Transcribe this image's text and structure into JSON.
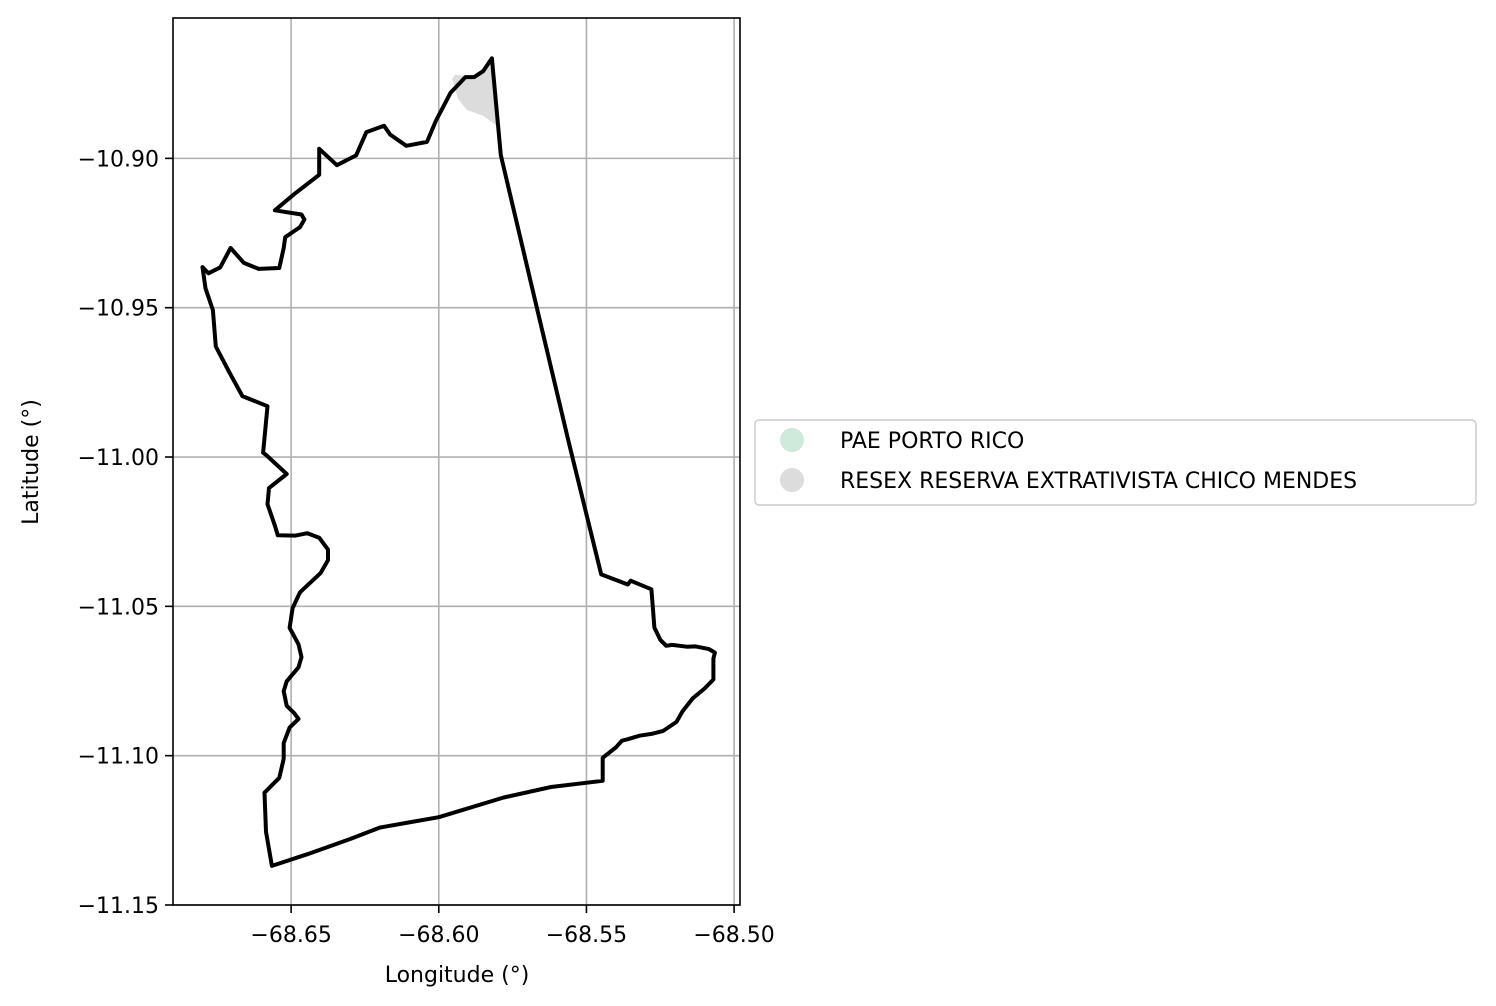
{
  "chart_data": {
    "type": "map",
    "xlabel": "Longitude (°)",
    "ylabel": "Latitude (°)",
    "xlim": [
      -68.69,
      -68.498
    ],
    "ylim": [
      -11.15,
      -10.853
    ],
    "grid": true,
    "x_ticks": [
      {
        "value": -68.65,
        "label": "−68.65"
      },
      {
        "value": -68.6,
        "label": "−68.60"
      },
      {
        "value": -68.55,
        "label": "−68.55"
      },
      {
        "value": -68.5,
        "label": "−68.50"
      }
    ],
    "y_ticks": [
      {
        "value": -10.9,
        "label": "−10.90"
      },
      {
        "value": -10.95,
        "label": "−10.95"
      },
      {
        "value": -11.0,
        "label": "−11.00"
      },
      {
        "value": -11.05,
        "label": "−11.05"
      },
      {
        "value": -11.1,
        "label": "−11.10"
      },
      {
        "value": -11.15,
        "label": "−11.15"
      }
    ],
    "legend": {
      "placement": "center-right-outside",
      "entries": [
        {
          "label": "PAE PORTO RICO",
          "color": "#cfeadb"
        },
        {
          "label": "RESEX RESERVA EXTRATIVISTA CHICO MENDES",
          "color": "#dcdcdc"
        }
      ]
    },
    "boundary_color": "#000000",
    "boundary_polygon": [
      [
        -68.582,
        -10.8665
      ],
      [
        -68.579,
        -10.8989
      ],
      [
        -68.568,
        -10.945
      ],
      [
        -68.556,
        -10.995
      ],
      [
        -68.545,
        -11.0393
      ],
      [
        -68.536,
        -11.0427
      ],
      [
        -68.535,
        -11.0414
      ],
      [
        -68.528,
        -11.0443
      ],
      [
        -68.527,
        -11.0571
      ],
      [
        -68.525,
        -11.0612
      ],
      [
        -68.523,
        -11.0632
      ],
      [
        -68.521,
        -11.0629
      ],
      [
        -68.516,
        -11.0635
      ],
      [
        -68.513,
        -11.0634
      ],
      [
        -68.5085,
        -11.0643
      ],
      [
        -68.5065,
        -11.0655
      ],
      [
        -68.507,
        -11.0675
      ],
      [
        -68.507,
        -11.0745
      ],
      [
        -68.51,
        -11.0775
      ],
      [
        -68.514,
        -11.0808
      ],
      [
        -68.5175,
        -11.0852
      ],
      [
        -68.5195,
        -11.0887
      ],
      [
        -68.524,
        -11.0917
      ],
      [
        -68.528,
        -11.0927
      ],
      [
        -68.532,
        -11.0933
      ],
      [
        -68.536,
        -11.0945
      ],
      [
        -68.538,
        -11.095
      ],
      [
        -68.54,
        -11.0972
      ],
      [
        -68.5445,
        -11.1007
      ],
      [
        -68.5445,
        -11.1084
      ],
      [
        -68.562,
        -11.1105
      ],
      [
        -68.578,
        -11.114
      ],
      [
        -68.6,
        -11.1206
      ],
      [
        -68.611,
        -11.1225
      ],
      [
        -68.62,
        -11.1241
      ],
      [
        -68.63,
        -11.1279
      ],
      [
        -68.6445,
        -11.133
      ],
      [
        -68.6565,
        -11.1369
      ],
      [
        -68.6585,
        -11.1255
      ],
      [
        -68.659,
        -11.1124
      ],
      [
        -68.654,
        -11.1074
      ],
      [
        -68.6525,
        -11.101
      ],
      [
        -68.6525,
        -11.0958
      ],
      [
        -68.6505,
        -11.0906
      ],
      [
        -68.6475,
        -11.0877
      ],
      [
        -68.649,
        -11.0857
      ],
      [
        -68.6515,
        -11.0833
      ],
      [
        -68.6525,
        -11.0784
      ],
      [
        -68.6515,
        -11.0751
      ],
      [
        -68.6475,
        -11.0704
      ],
      [
        -68.6465,
        -11.067
      ],
      [
        -68.6475,
        -11.0627
      ],
      [
        -68.6505,
        -11.0572
      ],
      [
        -68.6495,
        -11.0506
      ],
      [
        -68.647,
        -11.0453
      ],
      [
        -68.64,
        -11.0388
      ],
      [
        -68.6375,
        -11.0345
      ],
      [
        -68.6375,
        -11.031
      ],
      [
        -68.6405,
        -11.027
      ],
      [
        -68.6445,
        -11.0255
      ],
      [
        -68.6485,
        -11.0263
      ],
      [
        -68.6545,
        -11.0262
      ],
      [
        -68.6555,
        -11.023
      ],
      [
        -68.658,
        -11.0158
      ],
      [
        -68.6575,
        -11.0104
      ],
      [
        -68.6515,
        -11.0057
      ],
      [
        -68.6585,
        -10.9993
      ],
      [
        -68.6595,
        -10.9986
      ],
      [
        -68.658,
        -10.983
      ],
      [
        -68.6665,
        -10.9796
      ],
      [
        -68.671,
        -10.9715
      ],
      [
        -68.6755,
        -10.963
      ],
      [
        -68.6765,
        -10.9508
      ],
      [
        -68.679,
        -10.9435
      ],
      [
        -68.68,
        -10.9364
      ],
      [
        -68.678,
        -10.9385
      ],
      [
        -68.674,
        -10.9365
      ],
      [
        -68.6705,
        -10.93
      ],
      [
        -68.666,
        -10.935
      ],
      [
        -68.661,
        -10.937
      ],
      [
        -68.654,
        -10.9367
      ],
      [
        -68.6525,
        -10.93
      ],
      [
        -68.652,
        -10.9264
      ],
      [
        -68.647,
        -10.923
      ],
      [
        -68.6455,
        -10.9205
      ],
      [
        -68.6465,
        -10.9188
      ],
      [
        -68.6555,
        -10.9174
      ],
      [
        -68.649,
        -10.912
      ],
      [
        -68.6405,
        -10.9055
      ],
      [
        -68.6405,
        -10.8968
      ],
      [
        -68.6345,
        -10.9023
      ],
      [
        -68.628,
        -10.899
      ],
      [
        -68.6245,
        -10.8912
      ],
      [
        -68.6185,
        -10.8891
      ],
      [
        -68.6165,
        -10.892
      ],
      [
        -68.611,
        -10.8958
      ],
      [
        -68.604,
        -10.8945
      ],
      [
        -68.601,
        -10.8875
      ],
      [
        -68.596,
        -10.878
      ],
      [
        -68.591,
        -10.8728
      ],
      [
        -68.588,
        -10.8728
      ],
      [
        -68.585,
        -10.8708
      ],
      [
        -68.582,
        -10.8665
      ]
    ],
    "shaded_sliver": [
      [
        -68.5805,
        -10.889
      ],
      [
        -68.585,
        -10.8857
      ],
      [
        -68.5905,
        -10.8838
      ],
      [
        -68.5935,
        -10.88
      ],
      [
        -68.5955,
        -10.8735
      ],
      [
        -68.5945,
        -10.872
      ],
      [
        -68.588,
        -10.8728
      ],
      [
        -68.585,
        -10.8708
      ],
      [
        -68.582,
        -10.8665
      ],
      [
        -68.5805,
        -10.889
      ]
    ]
  }
}
